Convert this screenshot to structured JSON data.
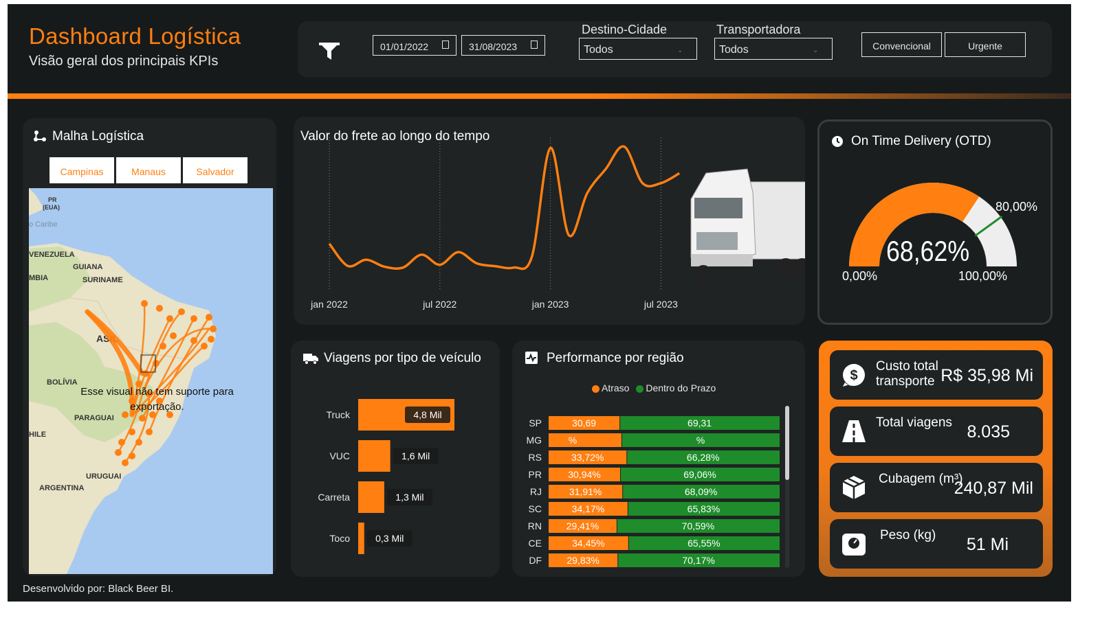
{
  "header": {
    "title": "Dashboard Logística",
    "subtitle": "Visão geral dos principais KPIs"
  },
  "filters": {
    "date_start": "01/01/2022",
    "date_end": "31/08/2023",
    "destino_label": "Destino-Cidade",
    "destino_value": "Todos",
    "transportadora_label": "Transportadora",
    "transportadora_value": "Todos",
    "btn_convencional": "Convencional",
    "btn_urgente": "Urgente"
  },
  "malha": {
    "title": "Malha Logística",
    "cities": [
      "Campinas",
      "Manaus",
      "Salvador"
    ],
    "map_labels": {
      "pr": "PR\n(EUA)",
      "caribe": "o Caribe",
      "venezuela": "VENEZUELA",
      "guiana": "GUIANA",
      "suriname": "SURINAME",
      "colombia": "MBIA",
      "brasil": "ASIL",
      "bolivia": "BOLÍVIA",
      "paraguai": "PARAGUAI",
      "chile": "HILE",
      "uruguai": "URUGUAI",
      "argentina": "ARGENTINA"
    },
    "export_msg": "Esse visual não tem suporte para exportação."
  },
  "frete": {
    "title": "Valor do frete ao longo do tempo"
  },
  "otd": {
    "title": "On Time Delivery (OTD)",
    "value_text": "68,62%",
    "min_label": "0,00%",
    "max_label": "100,00%",
    "target_label": "80,00%"
  },
  "viagens": {
    "title": "Viagens por tipo de veículo"
  },
  "performance": {
    "title": "Performance por região",
    "legend_atraso": "Atraso",
    "legend_prazo": "Dentro do Prazo"
  },
  "kpis": {
    "custo_label": "Custo total transporte",
    "custo_value": "R$ 35,98 Mi",
    "viagens_label": "Total viagens",
    "viagens_value": "8.035",
    "cubagem_label": "Cubagem (m³)",
    "cubagem_value": "240,87 Mil",
    "peso_label": "Peso (kg)",
    "peso_value": "51 Mi"
  },
  "footer": "Desenvolvido por: Black Beer BI.",
  "colors": {
    "accent": "#ff7f11",
    "green": "#1e8c2a",
    "background": "#171a1a",
    "panel": "#1f2323",
    "gauge_rest": "#eeeeee",
    "target_tick": "#1e8c2a"
  },
  "chart_data": [
    {
      "type": "line",
      "title": "Valor do frete ao longo do tempo",
      "x": [
        "jan 2022",
        "fev 2022",
        "mar 2022",
        "abr 2022",
        "mai 2022",
        "jun 2022",
        "jul 2022",
        "ago 2022",
        "set 2022",
        "out 2022",
        "nov 2022",
        "dez 2022",
        "jan 2023",
        "fev 2023",
        "mar 2023",
        "abr 2023",
        "mai 2023",
        "jun 2023",
        "jul 2023",
        "ago 2023"
      ],
      "x_ticks": [
        "jan 2022",
        "jul 2022",
        "jan 2023",
        "jul 2023"
      ],
      "values": [
        1.15,
        0.36,
        0.58,
        0.33,
        0.3,
        0.76,
        0.4,
        0.85,
        0.45,
        0.35,
        0.3,
        0.7,
        4.55,
        1.45,
        2.95,
        3.8,
        4.6,
        3.3,
        3.3,
        3.65
      ],
      "xlabel": "",
      "ylabel": "",
      "grid": "vertical dotted at x ticks",
      "series": [
        {
          "values": [
            1.15,
            0.36,
            0.58,
            0.33,
            0.3,
            0.76,
            0.4,
            0.85,
            0.45,
            0.35,
            0.3,
            0.7,
            4.55,
            1.45,
            2.95,
            3.8,
            4.6,
            3.3,
            3.3,
            3.65
          ]
        }
      ]
    },
    {
      "type": "bar",
      "title": "Viagens por tipo de veículo",
      "orientation": "horizontal",
      "categories": [
        "Truck",
        "VUC",
        "Carreta",
        "Toco"
      ],
      "values": [
        4.8,
        1.6,
        1.3,
        0.3
      ],
      "labels": [
        "4,8 Mil",
        "1,6 Mil",
        "1,3 Mil",
        "0,3 Mil"
      ],
      "unit": "Mil"
    },
    {
      "type": "bar",
      "title": "Performance por região",
      "orientation": "horizontal",
      "stacked": "100%",
      "categories": [
        "SP",
        "MG",
        "RS",
        "PR",
        "RJ",
        "SC",
        "RN",
        "CE",
        "DF"
      ],
      "series": [
        {
          "name": "Atraso",
          "values": [
            30.69,
            31.5,
            33.72,
            30.94,
            31.91,
            34.17,
            29.41,
            34.45,
            29.83
          ],
          "labels": [
            "30,69",
            "%",
            "33,72%",
            "30,94%",
            "31,91%",
            "34,17%",
            "29,41%",
            "34,45%",
            "29,83%"
          ]
        },
        {
          "name": "Dentro do Prazo",
          "values": [
            69.31,
            68.5,
            66.28,
            69.06,
            68.09,
            65.83,
            70.59,
            65.55,
            70.17
          ],
          "labels": [
            "69,31",
            "%",
            "66,28%",
            "69,06%",
            "68,09%",
            "65,83%",
            "70,59%",
            "65,55%",
            "70,17%"
          ]
        }
      ],
      "legend": "top-center"
    },
    {
      "type": "gauge",
      "title": "On Time Delivery (OTD)",
      "value": 68.62,
      "min": 0,
      "max": 100,
      "target": 80
    }
  ]
}
